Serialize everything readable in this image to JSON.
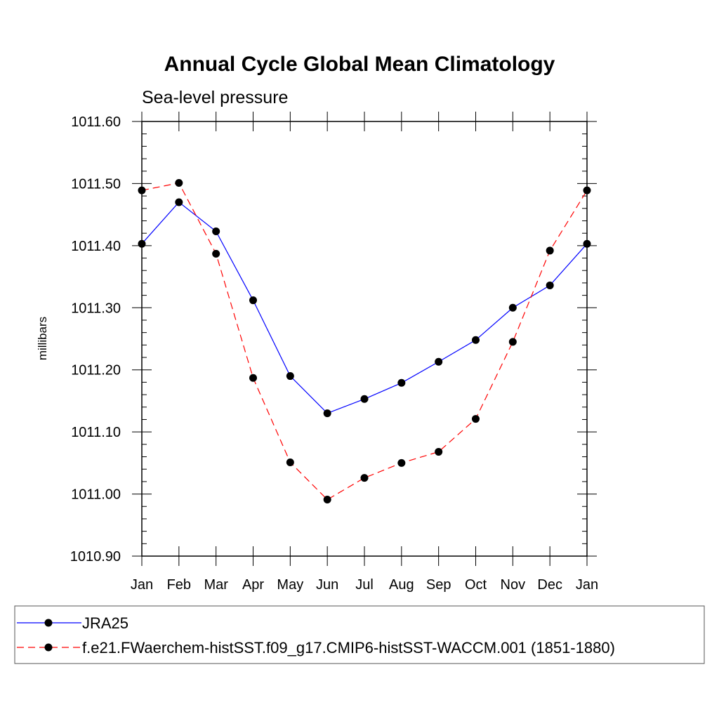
{
  "chart_data": {
    "type": "line",
    "title": "Annual Cycle Global Mean Climatology",
    "subtitle": "Sea-level pressure",
    "xlabel": "",
    "ylabel": "millibars",
    "categories": [
      "Jan",
      "Feb",
      "Mar",
      "Apr",
      "May",
      "Jun",
      "Jul",
      "Aug",
      "Sep",
      "Oct",
      "Nov",
      "Dec",
      "Jan"
    ],
    "ylim": [
      1010.9,
      1011.6
    ],
    "yticks": [
      "1010.90",
      "1011.00",
      "1011.10",
      "1011.20",
      "1011.30",
      "1011.40",
      "1011.50",
      "1011.60"
    ],
    "grid": false,
    "legend_position": "bottom",
    "series": [
      {
        "name": "JRA25",
        "color": "#0000ff",
        "dash": "solid",
        "values": [
          1011.403,
          1011.47,
          1011.423,
          1011.312,
          1011.19,
          1011.13,
          1011.153,
          1011.179,
          1011.213,
          1011.248,
          1011.3,
          1011.336,
          1011.403
        ]
      },
      {
        "name": "f.e21.FWaerchem-histSST.f09_g17.CMIP6-histSST-WACCM.001 (1851-1880)",
        "color": "#ff0000",
        "dash": "dashed",
        "values": [
          1011.489,
          1011.501,
          1011.387,
          1011.187,
          1011.051,
          1010.991,
          1011.026,
          1011.05,
          1011.068,
          1011.121,
          1011.245,
          1011.392,
          1011.489
        ]
      }
    ]
  }
}
